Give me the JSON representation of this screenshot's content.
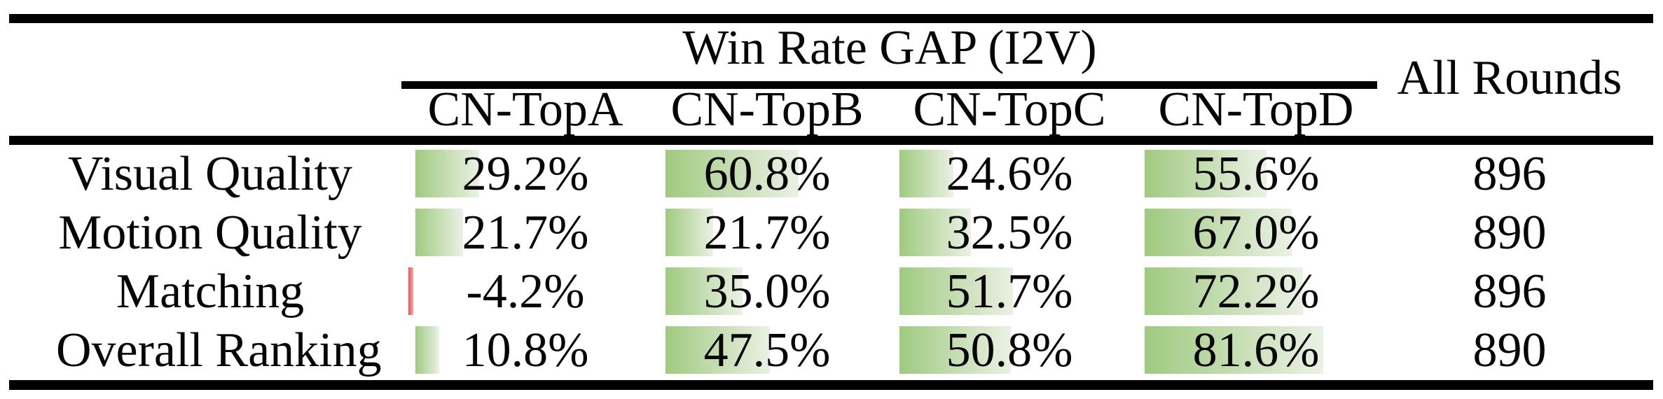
{
  "table": {
    "group_header": "Win Rate GAP (I2V)",
    "all_rounds_header": "All Rounds",
    "columns": [
      "CN-TopA",
      "CN-TopB",
      "CN-TopC",
      "CN-TopD"
    ],
    "rows": [
      {
        "label": "Visual Quality",
        "values": [
          "29.2%",
          "60.8%",
          "24.6%",
          "55.6%"
        ],
        "rounds": "896"
      },
      {
        "label": "Motion Quality",
        "values": [
          "21.7%",
          "21.7%",
          "32.5%",
          "67.0%"
        ],
        "rounds": "890"
      },
      {
        "label": "Matching",
        "values": [
          "-4.2%",
          "35.0%",
          "51.7%",
          "72.2%"
        ],
        "rounds": "896"
      },
      {
        "label": "Overall Ranking",
        "values": [
          "10.8%",
          "47.5%",
          "50.8%",
          "81.6%"
        ],
        "rounds": "890"
      }
    ]
  },
  "chart_data": {
    "type": "table",
    "title": "Win Rate GAP (I2V)",
    "categories": [
      "Visual Quality",
      "Motion Quality",
      "Matching",
      "Overall Ranking"
    ],
    "series": [
      {
        "name": "CN-TopA",
        "values": [
          29.2,
          21.7,
          -4.2,
          10.8
        ]
      },
      {
        "name": "CN-TopB",
        "values": [
          60.8,
          21.7,
          35.0,
          47.5
        ]
      },
      {
        "name": "CN-TopC",
        "values": [
          24.6,
          32.5,
          51.7,
          50.8
        ]
      },
      {
        "name": "CN-TopD",
        "values": [
          55.6,
          67.0,
          72.2,
          81.6
        ]
      },
      {
        "name": "All Rounds",
        "values": [
          896,
          890,
          896,
          890
        ]
      }
    ],
    "value_unit": "%",
    "bar_style": "in-cell data bars, positive green gradient, negative thin red"
  },
  "colors": {
    "bar_green_start": "#9fca80",
    "bar_green_end": "#ebf1e4",
    "bar_red_start": "#ef4d4d",
    "bar_red_end": "#fba7a7",
    "rule": "#000000"
  }
}
